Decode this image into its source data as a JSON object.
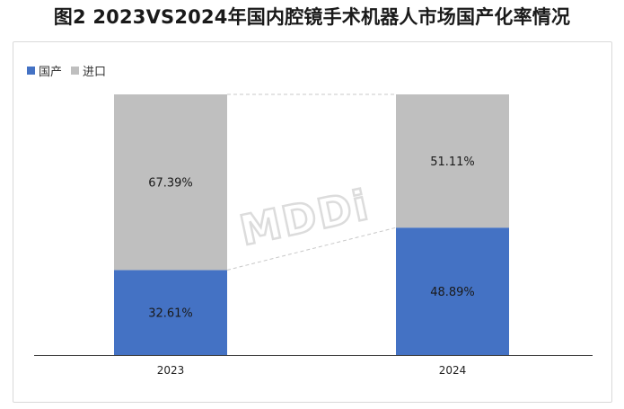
{
  "title": "图2 2023VS2024年国内腔镜手术机器人市场国产化率情况",
  "watermark": "MDDi",
  "colors": {
    "domestic": "#4472c4",
    "imported": "#bfbfbf",
    "connector": "#c8c8c8",
    "axis": "#404040"
  },
  "chart_data": {
    "type": "bar",
    "stacked": true,
    "percent_stacked": true,
    "categories": [
      "2023",
      "2024"
    ],
    "series": [
      {
        "name": "国产",
        "values": [
          32.61,
          48.89
        ],
        "labels": [
          "32.61%",
          "48.89%"
        ],
        "color": "#4472c4"
      },
      {
        "name": "进口",
        "values": [
          67.39,
          51.11
        ],
        "labels": [
          "67.39%",
          "51.11%"
        ],
        "color": "#bfbfbf"
      }
    ],
    "ylim": [
      0,
      100
    ],
    "legend": "top-left",
    "grid": false,
    "series_connector_lines": true
  }
}
